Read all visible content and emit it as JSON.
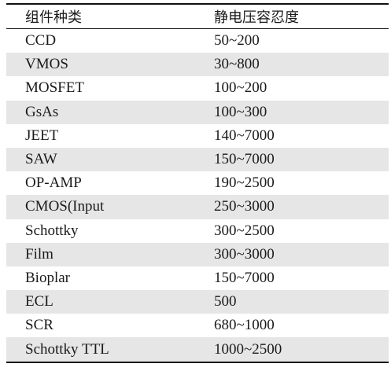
{
  "table": {
    "headers": {
      "component_type": "组件种类",
      "esd_tolerance": "静电压容忍度"
    },
    "rows": [
      {
        "component": "CCD",
        "tolerance": "50~200"
      },
      {
        "component": "VMOS",
        "tolerance": "30~800"
      },
      {
        "component": "MOSFET",
        "tolerance": "100~200"
      },
      {
        "component": "GsAs",
        "tolerance": "100~300"
      },
      {
        "component": "JEET",
        "tolerance": "140~7000"
      },
      {
        "component": "SAW",
        "tolerance": "150~7000"
      },
      {
        "component": "OP-AMP",
        "tolerance": "190~2500"
      },
      {
        "component": "CMOS(Input",
        "tolerance": "250~3000"
      },
      {
        "component": "Schottky",
        "tolerance": "300~2500"
      },
      {
        "component": "Film",
        "tolerance": "300~3000"
      },
      {
        "component": "Bioplar",
        "tolerance": "150~7000"
      },
      {
        "component": "ECL",
        "tolerance": "500"
      },
      {
        "component": "SCR",
        "tolerance": "680~1000"
      },
      {
        "component": "Schottky TTL",
        "tolerance": "1000~2500"
      }
    ]
  },
  "style": {
    "stripe_color": "#e6e6e6",
    "rule_color": "#111111",
    "text_color": "#1a1a1a"
  }
}
